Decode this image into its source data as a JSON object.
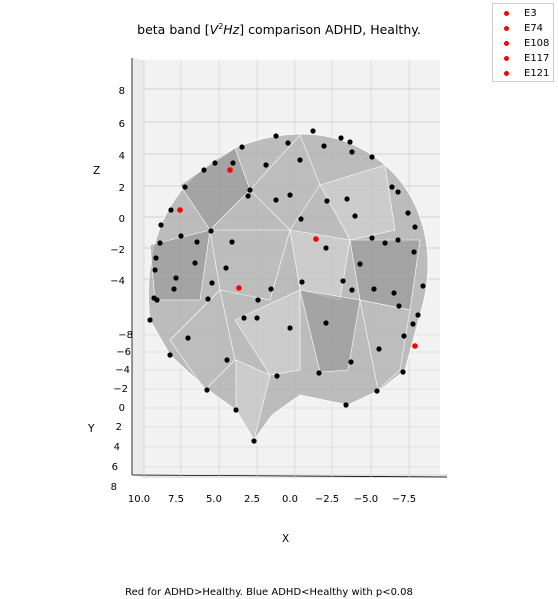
{
  "chart_data": {
    "type": "scatter",
    "title_tex": "beta band [V²Hz] comparison ADHD, Healthy.",
    "title_parts": [
      "beta band [",
      "V",
      "2",
      "Hz",
      "] comparison ADHD, Healthy."
    ],
    "caption": "Red for ADHD>Healthy. Blue ADHD<Healthy with p<0.08",
    "xlabel": "X",
    "ylabel": "Y",
    "zlabel": "Z",
    "x_ticks": [
      "10.0",
      "7.5",
      "5.0",
      "2.5",
      "0.0",
      "−2.5",
      "−5.0",
      "−7.5"
    ],
    "y_ticks": [
      "−8",
      "−6",
      "−4",
      "−2",
      "0",
      "2",
      "4",
      "6",
      "8"
    ],
    "z_ticks": [
      "8",
      "6",
      "4",
      "2",
      "0",
      "−2",
      "−4"
    ],
    "grid": true,
    "legend_position": "top-right",
    "legend": [
      {
        "label": "E3",
        "color": "#ff0000"
      },
      {
        "label": "E74",
        "color": "#ff0000"
      },
      {
        "label": "E108",
        "color": "#ff0000"
      },
      {
        "label": "E117",
        "color": "#ff0000"
      },
      {
        "label": "E121",
        "color": "#ff0000"
      }
    ],
    "colors": {
      "highlight": "#ff0000",
      "electrode": "#000000",
      "surface": "#a9a9a9"
    }
  }
}
